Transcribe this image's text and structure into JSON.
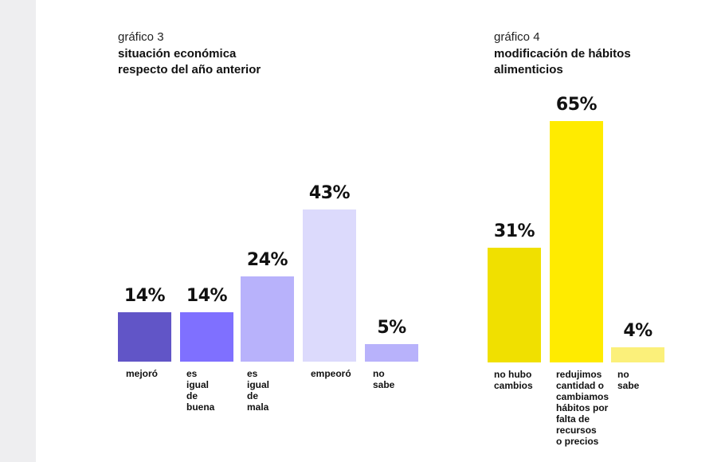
{
  "chart_data": [
    {
      "type": "bar",
      "subtitle": "gráfico 3",
      "title_lines": [
        "situación económica",
        "respecto del año anterior"
      ],
      "categories": [
        [
          "mejoró"
        ],
        [
          "es igual",
          "de buena"
        ],
        [
          "es igual",
          "de mala"
        ],
        [
          "empeoró"
        ],
        [
          "no sabe"
        ]
      ],
      "values": [
        14,
        14,
        24,
        43,
        5
      ],
      "value_labels": [
        "14%",
        "14%",
        "24%",
        "43%",
        "5%"
      ],
      "colors": [
        "#6155c7",
        "#7f70ff",
        "#b8b2fb",
        "#dcdafc",
        "#b8b2fb"
      ],
      "xlabel": "",
      "ylabel": "",
      "ylim": [
        0,
        50
      ],
      "grid": false
    },
    {
      "type": "bar",
      "subtitle": "gráfico 4",
      "title_lines": [
        "modificación de hábitos",
        "alimenticios"
      ],
      "categories": [
        [
          "no hubo",
          "cambios"
        ],
        [
          "redujimos",
          "cantidad o",
          "cambiamos",
          "hábitos por",
          "falta de",
          "recursos",
          "o precios"
        ],
        [
          "no sabe"
        ]
      ],
      "values": [
        31,
        65,
        4
      ],
      "value_labels": [
        "31%",
        "65%",
        "4%"
      ],
      "colors": [
        "#f0e000",
        "#ffeb00",
        "#fbf07a"
      ],
      "xlabel": "",
      "ylabel": "",
      "ylim": [
        0,
        70
      ],
      "grid": false
    }
  ]
}
